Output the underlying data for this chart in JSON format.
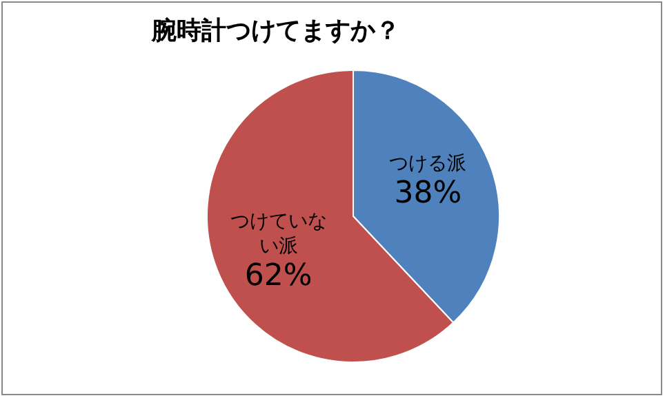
{
  "chart_data": {
    "type": "pie",
    "title": "腕時計つけてますか？",
    "categories": [
      "つける派",
      "つけていない派"
    ],
    "values": [
      38,
      62
    ],
    "colors": [
      "#4f81bd",
      "#c0504d"
    ],
    "value_labels": [
      "38%",
      "62%"
    ],
    "legend": false
  }
}
